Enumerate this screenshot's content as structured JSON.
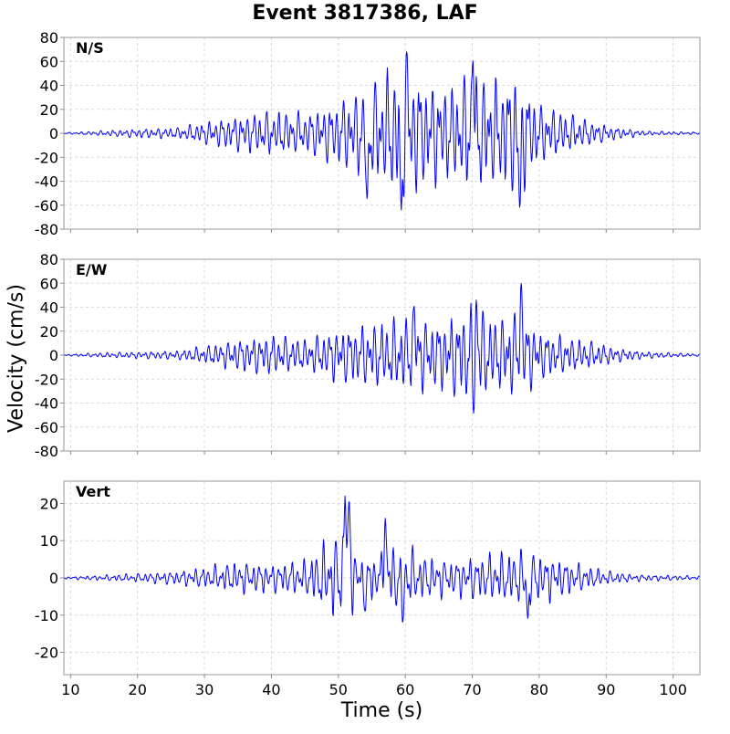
{
  "chart_data": {
    "type": "line",
    "title": "Event 3817386, LAF",
    "xlabel": "Time (s)",
    "ylabel": "Velocity (cm/s)",
    "xlim": [
      9,
      104
    ],
    "x_ticks": [
      "10",
      "20",
      "30",
      "40",
      "50",
      "60",
      "70",
      "80",
      "90",
      "100"
    ],
    "grid": true,
    "line_color": "#0000ff",
    "panels": [
      {
        "name": "N/S",
        "ylim": [
          -80,
          80
        ],
        "y_ticks": [
          "80",
          "60",
          "40",
          "20",
          "0",
          "-20",
          "-40",
          "-60",
          "-80"
        ],
        "envelope": {
          "t": [
            9,
            14,
            20,
            26,
            30,
            35,
            40,
            45,
            48,
            52,
            55,
            58,
            60,
            63,
            67,
            70,
            73,
            77,
            80,
            84,
            88,
            92,
            96,
            104
          ],
          "amp": [
            0.5,
            2,
            4,
            5,
            10,
            16,
            20,
            18,
            24,
            34,
            44,
            55,
            62,
            46,
            42,
            55,
            46,
            55,
            26,
            18,
            10,
            5,
            2,
            1
          ]
        },
        "peaks": [
          {
            "t": 60.2,
            "v": 68
          },
          {
            "t": 59.4,
            "v": -64
          },
          {
            "t": 70.1,
            "v": 61
          },
          {
            "t": 77.1,
            "v": -62
          },
          {
            "t": 54.3,
            "v": -55
          }
        ]
      },
      {
        "name": "E/W",
        "ylim": [
          -80,
          80
        ],
        "y_ticks": [
          "80",
          "60",
          "40",
          "20",
          "0",
          "-20",
          "-40",
          "-60",
          "-80"
        ],
        "envelope": {
          "t": [
            9,
            14,
            20,
            26,
            30,
            35,
            40,
            45,
            50,
            55,
            60,
            65,
            70,
            74,
            77,
            80,
            84,
            88,
            92,
            96,
            104
          ],
          "amp": [
            0.5,
            2,
            3,
            4,
            8,
            14,
            18,
            14,
            24,
            28,
            34,
            30,
            44,
            32,
            40,
            22,
            16,
            12,
            6,
            3,
            1
          ]
        },
        "peaks": [
          {
            "t": 77.3,
            "v": 60
          },
          {
            "t": 70.3,
            "v": -57
          },
          {
            "t": 70.6,
            "v": 46
          },
          {
            "t": 61.3,
            "v": 41
          }
        ]
      },
      {
        "name": "Vert",
        "ylim": [
          -26,
          26
        ],
        "y_ticks": [
          "20",
          "10",
          "0",
          "-10",
          "-20"
        ],
        "envelope": {
          "t": [
            9,
            14,
            20,
            26,
            30,
            35,
            40,
            45,
            48,
            51,
            53,
            56,
            59,
            63,
            67,
            70,
            74,
            78,
            82,
            86,
            90,
            94,
            104
          ],
          "amp": [
            0.3,
            0.7,
            1.2,
            2,
            3,
            4.5,
            4,
            5,
            10,
            13,
            6,
            7,
            10,
            6,
            5,
            6,
            7,
            8,
            6,
            4,
            2,
            1,
            0.5
          ]
        },
        "peaks": [
          {
            "t": 51.0,
            "v": 22
          },
          {
            "t": 51.6,
            "v": 21
          },
          {
            "t": 57.0,
            "v": 16
          },
          {
            "t": 59.6,
            "v": -12
          },
          {
            "t": 78.3,
            "v": -11
          },
          {
            "t": 54.0,
            "v": -9
          }
        ]
      }
    ]
  }
}
